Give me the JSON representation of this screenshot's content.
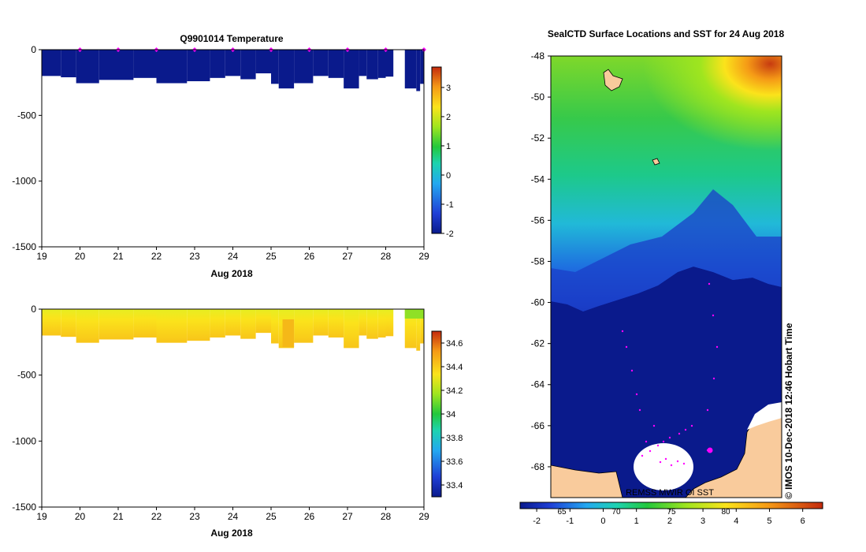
{
  "colors": {
    "deep_blue": "#0a1a8c",
    "land": "#f9cb9c",
    "track": "#ff00ff",
    "ice": "#ffffff"
  },
  "chart_data": [
    {
      "type": "heatmap",
      "title": "Q9901014  Temperature",
      "xlabel": "Aug 2018",
      "x_ticks": [
        "19",
        "20",
        "21",
        "22",
        "23",
        "24",
        "25",
        "26",
        "27",
        "28",
        "29"
      ],
      "xlim": [
        19,
        29
      ],
      "y_ticks": [
        "0",
        "-500",
        "-1000",
        "-1500"
      ],
      "ylim": [
        -1500,
        0
      ],
      "profile_markers": [
        20,
        21,
        22,
        23,
        24,
        25,
        26,
        27,
        28,
        29
      ],
      "colorbar_ticks": [
        "3",
        "2",
        "1",
        "0",
        "-1",
        "-2"
      ],
      "colorbar_range": [
        -2,
        3.7
      ],
      "profiles": [
        {
          "x0": 19.0,
          "x1": 19.5,
          "depth": -200
        },
        {
          "x0": 19.5,
          "x1": 19.9,
          "depth": -210
        },
        {
          "x0": 19.9,
          "x1": 20.5,
          "depth": -255
        },
        {
          "x0": 20.5,
          "x1": 21.4,
          "depth": -230
        },
        {
          "x0": 21.4,
          "x1": 22.0,
          "depth": -215
        },
        {
          "x0": 22.0,
          "x1": 22.8,
          "depth": -255
        },
        {
          "x0": 22.8,
          "x1": 23.4,
          "depth": -240
        },
        {
          "x0": 23.4,
          "x1": 23.8,
          "depth": -215
        },
        {
          "x0": 23.8,
          "x1": 24.2,
          "depth": -200
        },
        {
          "x0": 24.2,
          "x1": 24.6,
          "depth": -225
        },
        {
          "x0": 24.6,
          "x1": 25.0,
          "depth": -180
        },
        {
          "x0": 25.0,
          "x1": 25.2,
          "depth": -260
        },
        {
          "x0": 25.2,
          "x1": 25.6,
          "depth": -295
        },
        {
          "x0": 25.6,
          "x1": 26.1,
          "depth": -255
        },
        {
          "x0": 26.1,
          "x1": 26.5,
          "depth": -200
        },
        {
          "x0": 26.5,
          "x1": 26.9,
          "depth": -215
        },
        {
          "x0": 26.9,
          "x1": 27.3,
          "depth": -295
        },
        {
          "x0": 27.3,
          "x1": 27.5,
          "depth": -200
        },
        {
          "x0": 27.5,
          "x1": 27.8,
          "depth": -225
        },
        {
          "x0": 27.8,
          "x1": 28.0,
          "depth": -215
        },
        {
          "x0": 28.0,
          "x1": 28.2,
          "depth": -205
        },
        {
          "x0": 28.5,
          "x1": 28.8,
          "depth": -295
        },
        {
          "x0": 28.8,
          "x1": 28.9,
          "depth": -315
        },
        {
          "x0": 28.9,
          "x1": 29.0,
          "depth": -260
        }
      ]
    },
    {
      "type": "heatmap",
      "title": "",
      "xlabel": "Aug 2018",
      "x_ticks": [
        "19",
        "20",
        "21",
        "22",
        "23",
        "24",
        "25",
        "26",
        "27",
        "28",
        "29"
      ],
      "xlim": [
        19,
        29
      ],
      "y_ticks": [
        "0",
        "-500",
        "-1000",
        "-1500"
      ],
      "ylim": [
        -1500,
        0
      ],
      "colorbar_ticks": [
        "34.6",
        "34.4",
        "34.2",
        "34",
        "33.8",
        "33.6",
        "33.4"
      ],
      "colorbar_range": [
        33.3,
        34.7
      ],
      "profiles": [
        {
          "x0": 19.0,
          "x1": 19.5,
          "depth": -200
        },
        {
          "x0": 19.5,
          "x1": 19.9,
          "depth": -210
        },
        {
          "x0": 19.9,
          "x1": 20.5,
          "depth": -255
        },
        {
          "x0": 20.5,
          "x1": 21.4,
          "depth": -230
        },
        {
          "x0": 21.4,
          "x1": 22.0,
          "depth": -215
        },
        {
          "x0": 22.0,
          "x1": 22.8,
          "depth": -255
        },
        {
          "x0": 22.8,
          "x1": 23.4,
          "depth": -240
        },
        {
          "x0": 23.4,
          "x1": 23.8,
          "depth": -215
        },
        {
          "x0": 23.8,
          "x1": 24.2,
          "depth": -200
        },
        {
          "x0": 24.2,
          "x1": 24.6,
          "depth": -225
        },
        {
          "x0": 24.6,
          "x1": 25.0,
          "depth": -180
        },
        {
          "x0": 25.0,
          "x1": 25.2,
          "depth": -260
        },
        {
          "x0": 25.2,
          "x1": 25.6,
          "depth": -295
        },
        {
          "x0": 25.6,
          "x1": 26.1,
          "depth": -255
        },
        {
          "x0": 26.1,
          "x1": 26.5,
          "depth": -200
        },
        {
          "x0": 26.5,
          "x1": 26.9,
          "depth": -215
        },
        {
          "x0": 26.9,
          "x1": 27.3,
          "depth": -295
        },
        {
          "x0": 27.3,
          "x1": 27.5,
          "depth": -200
        },
        {
          "x0": 27.5,
          "x1": 27.8,
          "depth": -225
        },
        {
          "x0": 27.8,
          "x1": 28.0,
          "depth": -215
        },
        {
          "x0": 28.0,
          "x1": 28.2,
          "depth": -205
        },
        {
          "x0": 28.5,
          "x1": 28.8,
          "depth": -295
        },
        {
          "x0": 28.8,
          "x1": 28.9,
          "depth": -315
        },
        {
          "x0": 28.9,
          "x1": 29.0,
          "depth": -260
        }
      ]
    },
    {
      "type": "heatmap",
      "title": "SealCTD Surface Locations and SST for 24 Aug 2018",
      "xlabel": "",
      "ylabel": "",
      "y_ticks": [
        "-48",
        "-50",
        "-52",
        "-54",
        "-56",
        "-58",
        "-60",
        "-62",
        "-64",
        "-66",
        "-68"
      ],
      "ylim": [
        -69.5,
        -48
      ],
      "colorbar_ticks": [
        "-2",
        "-1",
        "0",
        "1",
        "2",
        "3",
        "4",
        "5",
        "6"
      ],
      "colorbar_range": [
        -2.5,
        6.6
      ],
      "colorbar_overlay_ticks": [
        "65",
        "70",
        "75",
        "80"
      ],
      "side_label": "© IMOS 10-Dec-2018 12:46 Hobart Time",
      "bottom_label": "REMSS MWIR OI SST"
    }
  ]
}
